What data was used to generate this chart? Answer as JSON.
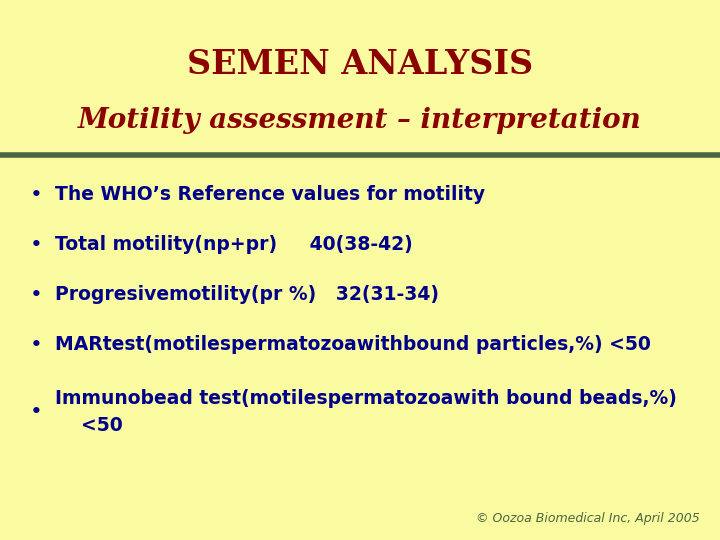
{
  "title_line1": "SEMEN ANALYSIS",
  "title_line2": "Motility assessment – interpretation",
  "title_color": "#8B0000",
  "background_color": "#FAFAA0",
  "divider_color": "#4A6741",
  "bullet_color": "#00008B",
  "bullet_points": [
    "The WHO’s Reference values for motility",
    "Total motility(np+pr)     40(38-42)",
    "Progresivemotility(pr %)   32(31-34)",
    "MARtest(motilespermatozoawithbound particles,%) <50",
    "Immunobead test(motilespermatozoawith bound beads,%)\n    <50"
  ],
  "footer_text": "© Oozoa Biomedical Inc, April 2005",
  "footer_color": "#4A6741",
  "title1_fontsize": 24,
  "title2_fontsize": 20,
  "bullet_fontsize": 13.5,
  "footer_fontsize": 9
}
